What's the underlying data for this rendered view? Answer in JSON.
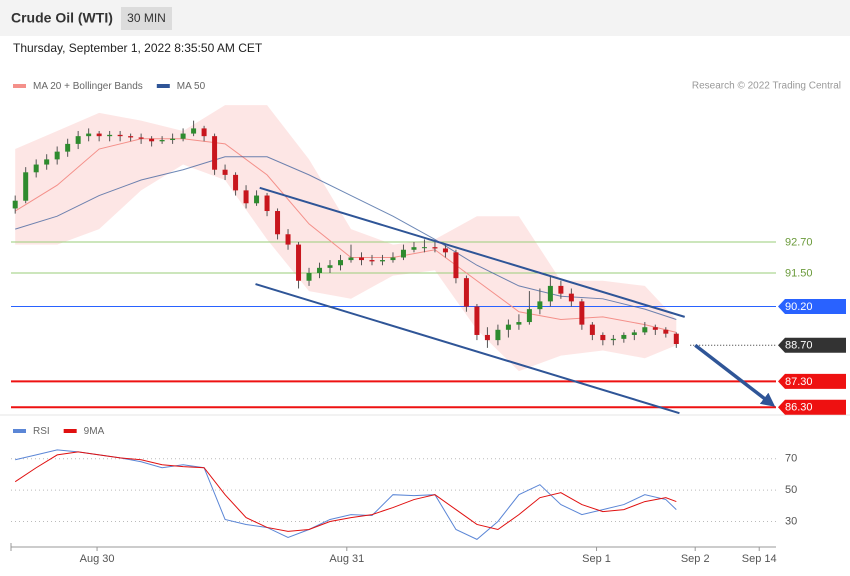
{
  "header": {
    "title": "Crude Oil (WTI)",
    "timeframe": "30 MIN",
    "date": "Thursday, September 1, 2022 8:35:50 AM CET",
    "credit": "Research © 2022 Trading Central"
  },
  "chart_data": [
    {
      "type": "candlestick",
      "legend": [
        {
          "name": "MA 20 + Bollinger Bands",
          "color": "#f4908a"
        },
        {
          "name": "MA 50",
          "color": "#2f5597"
        }
      ],
      "xlim": [
        0.6,
        73.5
      ],
      "ylim": [
        86.0,
        98.2
      ],
      "x": [
        1,
        2,
        3,
        4,
        5,
        6,
        7,
        8,
        9,
        10,
        11,
        12,
        13,
        14,
        15,
        16,
        17,
        18,
        19,
        20,
        21,
        22,
        23,
        24,
        25,
        26,
        27,
        28,
        29,
        30,
        31,
        32,
        33,
        34,
        35,
        36,
        37,
        38,
        39,
        40,
        41,
        42,
        43,
        44,
        45,
        46,
        47,
        48,
        49,
        50,
        51,
        52,
        53,
        54,
        55,
        56,
        57,
        58,
        59,
        60,
        61,
        62,
        63,
        64
      ],
      "open": [
        94.0,
        94.3,
        95.4,
        95.7,
        95.9,
        96.2,
        96.5,
        96.8,
        96.9,
        96.8,
        96.85,
        96.8,
        96.75,
        96.7,
        96.6,
        96.65,
        96.7,
        96.9,
        97.1,
        96.8,
        95.5,
        95.3,
        94.7,
        94.2,
        94.5,
        93.9,
        93.0,
        92.6,
        91.2,
        91.5,
        91.7,
        91.8,
        92.0,
        92.1,
        92.0,
        91.95,
        92.0,
        92.1,
        92.4,
        92.5,
        92.5,
        92.45,
        92.3,
        91.3,
        90.2,
        89.1,
        88.9,
        89.3,
        89.5,
        89.6,
        90.1,
        90.4,
        91.0,
        90.7,
        90.4,
        89.5,
        89.1,
        88.9,
        88.95,
        89.1,
        89.2,
        89.4,
        89.3,
        89.15
      ],
      "high": [
        94.5,
        95.6,
        95.9,
        96.1,
        96.4,
        96.7,
        97.0,
        97.1,
        97.0,
        97.0,
        97.0,
        96.9,
        96.9,
        96.8,
        96.8,
        96.9,
        97.1,
        97.4,
        97.2,
        96.9,
        95.7,
        95.4,
        94.9,
        94.7,
        94.6,
        94.0,
        93.2,
        92.7,
        91.7,
        91.9,
        92.0,
        92.2,
        92.6,
        92.3,
        92.2,
        92.2,
        92.3,
        92.6,
        92.7,
        92.8,
        92.7,
        92.6,
        92.4,
        91.4,
        90.3,
        89.4,
        89.5,
        89.7,
        89.9,
        90.8,
        90.9,
        91.4,
        91.2,
        90.9,
        90.5,
        89.6,
        89.2,
        89.1,
        89.2,
        89.3,
        89.6,
        89.5,
        89.4,
        89.2
      ],
      "low": [
        93.8,
        94.2,
        95.2,
        95.5,
        95.7,
        96.0,
        96.3,
        96.6,
        96.6,
        96.6,
        96.6,
        96.6,
        96.5,
        96.4,
        96.5,
        96.5,
        96.6,
        96.8,
        96.6,
        95.3,
        95.1,
        94.5,
        94.0,
        94.1,
        93.7,
        92.8,
        92.4,
        90.9,
        91.0,
        91.3,
        91.5,
        91.6,
        91.9,
        91.8,
        91.8,
        91.8,
        91.9,
        92.0,
        92.3,
        92.3,
        92.3,
        92.1,
        91.1,
        90.0,
        88.9,
        88.6,
        88.7,
        89.0,
        89.3,
        89.5,
        89.9,
        90.2,
        90.5,
        90.2,
        89.3,
        88.9,
        88.7,
        88.7,
        88.8,
        88.9,
        89.1,
        89.1,
        89.0,
        88.6
      ],
      "close": [
        94.3,
        95.4,
        95.7,
        95.9,
        96.2,
        96.5,
        96.8,
        96.9,
        96.8,
        96.85,
        96.8,
        96.75,
        96.7,
        96.6,
        96.65,
        96.7,
        96.9,
        97.1,
        96.8,
        95.5,
        95.3,
        94.7,
        94.2,
        94.5,
        93.9,
        93.0,
        92.6,
        91.2,
        91.5,
        91.7,
        91.8,
        92.0,
        92.1,
        92.0,
        91.95,
        92.0,
        92.1,
        92.4,
        92.5,
        92.5,
        92.45,
        92.3,
        91.3,
        90.2,
        89.1,
        88.9,
        89.3,
        89.5,
        89.6,
        90.1,
        90.4,
        91.0,
        90.7,
        90.4,
        89.5,
        89.1,
        88.9,
        88.95,
        89.1,
        89.2,
        89.4,
        89.3,
        89.15,
        88.75
      ],
      "up_color": "#2e8b2e",
      "down_color": "#c8161d",
      "overlay_x": [
        1,
        5,
        9,
        13,
        17,
        21,
        25,
        29,
        33,
        37,
        41,
        45,
        49,
        53,
        57,
        61,
        64
      ],
      "bb_upper": [
        96.3,
        97.0,
        97.7,
        97.4,
        97.0,
        98.0,
        98.0,
        95.9,
        93.2,
        92.6,
        92.8,
        93.7,
        93.7,
        91.2,
        91.2,
        91.0,
        89.7
      ],
      "bb_lower": [
        92.6,
        92.6,
        93.2,
        94.7,
        95.7,
        95.1,
        92.8,
        90.8,
        90.5,
        91.4,
        91.6,
        89.3,
        87.7,
        88.3,
        88.5,
        88.2,
        88.7
      ],
      "ma20": [
        93.9,
        94.9,
        96.3,
        96.7,
        96.7,
        96.5,
        95.3,
        93.4,
        92.1,
        92.1,
        92.4,
        91.2,
        90.0,
        89.7,
        89.8,
        89.5,
        89.2
      ],
      "ma50": [
        93.2,
        93.7,
        94.5,
        95.1,
        95.5,
        96.0,
        96.0,
        95.3,
        94.5,
        93.7,
        92.8,
        91.8,
        91.0,
        90.6,
        90.5,
        90.1,
        89.7
      ],
      "levels": [
        {
          "value": 92.7,
          "label": "92.70",
          "color": "#9acd7a",
          "tag": false
        },
        {
          "value": 91.5,
          "label": "91.50",
          "color": "#9acd7a",
          "tag": false
        },
        {
          "value": 90.2,
          "label": "90.20",
          "color": "#2962ff",
          "tag": true
        },
        {
          "value": 88.7,
          "label": "88.70",
          "color": "#333333",
          "tag": true
        },
        {
          "value": 87.3,
          "label": "87.30",
          "color": "#ee1111",
          "tag": true
        },
        {
          "value": 86.3,
          "label": "86.30",
          "color": "#ee1111",
          "tag": true
        }
      ],
      "trendlines": [
        {
          "x": [
            24.3,
            64.8
          ],
          "values": [
            94.8,
            89.8
          ]
        },
        {
          "x": [
            23.9,
            64.3
          ],
          "values": [
            91.07,
            86.07
          ]
        }
      ],
      "trend_color": "#2f5597",
      "arrow": {
        "x": [
          65.8,
          73.0
        ],
        "values": [
          88.7,
          86.45
        ]
      }
    },
    {
      "type": "line",
      "xlim": [
        0.6,
        73.5
      ],
      "ylim": [
        15,
        82
      ],
      "yticks": [
        70,
        50,
        30
      ],
      "x": [
        1,
        3,
        5,
        7,
        9,
        11,
        13,
        15,
        17,
        19,
        21,
        23,
        25,
        27,
        29,
        31,
        33,
        35,
        37,
        39,
        41,
        43,
        45,
        47,
        49,
        51,
        53,
        55,
        57,
        59,
        61,
        63,
        64
      ],
      "series": [
        {
          "name": "RSI",
          "color": "#5b86d6",
          "values": [
            69.4,
            72.5,
            75.7,
            74.4,
            72.5,
            70.6,
            68.1,
            64.3,
            66.2,
            64.3,
            31.3,
            28.1,
            26.2,
            19.8,
            24.9,
            31.3,
            34.4,
            33.8,
            47.1,
            46.5,
            47.1,
            24.9,
            18.6,
            30.0,
            47.1,
            53.5,
            40.8,
            34.4,
            37.6,
            40.8,
            47.1,
            44.0,
            37.6
          ]
        },
        {
          "name": "9MA",
          "color": "#e01010",
          "values": [
            55.4,
            64.3,
            72.5,
            74.4,
            72.5,
            70.6,
            69.4,
            66.2,
            65.0,
            64.3,
            47.1,
            32.5,
            26.2,
            23.7,
            24.9,
            30.0,
            32.5,
            34.4,
            38.9,
            44.0,
            47.1,
            37.6,
            28.1,
            24.9,
            34.4,
            45.2,
            48.4,
            40.8,
            36.3,
            37.6,
            42.7,
            45.2,
            42.7
          ]
        }
      ],
      "xticks": [
        {
          "value": 8.8,
          "label": "Aug 30"
        },
        {
          "value": 32.6,
          "label": "Aug 31"
        },
        {
          "value": 56.4,
          "label": "Sep 1"
        },
        {
          "value": 65.8,
          "label": "Sep 2"
        },
        {
          "value": 71.9,
          "label": "Sep 14"
        }
      ]
    }
  ]
}
